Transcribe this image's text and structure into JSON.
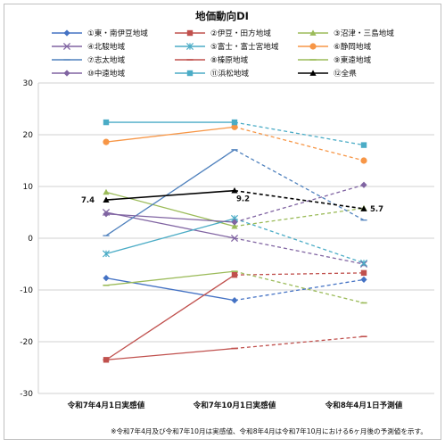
{
  "chart_data": {
    "type": "line",
    "title": "地価動向DI",
    "categories": [
      "令和7年4月1日実感値",
      "令和7年10月1日実感値",
      "令和8年4月1日予測値"
    ],
    "ylim": [
      -30,
      30
    ],
    "yticks": [
      30,
      20,
      10,
      0,
      -10,
      -20,
      -30
    ],
    "grid": true,
    "legend_position": "top",
    "series": [
      {
        "name": "①東・南伊豆地域",
        "values": [
          -7.7,
          -12.0,
          -8.0
        ],
        "color": "#4472c4",
        "marker": "diamond"
      },
      {
        "name": "②伊豆・田方地域",
        "values": [
          -23.5,
          -7.1,
          -6.7
        ],
        "color": "#c0504d",
        "marker": "square"
      },
      {
        "name": "③沼津・三島地域",
        "values": [
          8.9,
          2.3,
          5.8
        ],
        "color": "#9bbb59",
        "marker": "triangle"
      },
      {
        "name": "④北駿地域",
        "values": [
          5.0,
          0.0,
          -5.0
        ],
        "color": "#8064a2",
        "marker": "x"
      },
      {
        "name": "⑤富士・富士宮地域",
        "values": [
          -3.0,
          3.8,
          -4.8
        ],
        "color": "#4bacc6",
        "marker": "star"
      },
      {
        "name": "⑥静岡地域",
        "values": [
          18.6,
          21.5,
          15.0
        ],
        "color": "#f79646",
        "marker": "circle"
      },
      {
        "name": "⑦志太地域",
        "values": [
          0.5,
          17.1,
          3.5
        ],
        "color": "#4f81bd",
        "marker": "plus"
      },
      {
        "name": "⑧榛原地域",
        "values": [
          -23.5,
          -21.3,
          -19.0
        ],
        "color": "#c0504d",
        "marker": "dash"
      },
      {
        "name": "⑨東遠地域",
        "values": [
          -9.1,
          -6.4,
          -12.5
        ],
        "color": "#9bbb59",
        "marker": "dash"
      },
      {
        "name": "⑩中遠地域",
        "values": [
          4.7,
          3.1,
          10.3
        ],
        "color": "#8064a2",
        "marker": "diamond"
      },
      {
        "name": "⑪浜松地域",
        "values": [
          22.4,
          22.4,
          18.0
        ],
        "color": "#4bacc6",
        "marker": "square"
      },
      {
        "name": "⑫全県",
        "values": [
          7.4,
          9.2,
          5.7
        ],
        "color": "#000000",
        "marker": "triangle",
        "data_labels": [
          "7.4",
          "9.2",
          "5.7"
        ]
      }
    ],
    "footnote": "※令和7年4月及び令和7年10月は実感値、令和8年4月は令和7年10月における6ヶ月後の予測値を示す。"
  }
}
